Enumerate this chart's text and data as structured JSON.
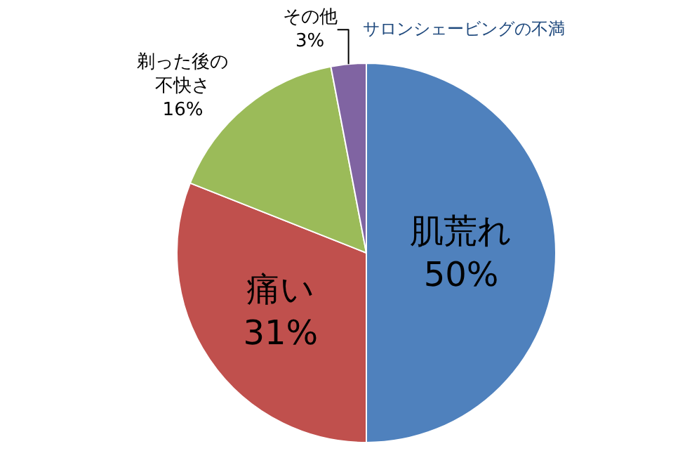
{
  "chart_data": {
    "type": "pie",
    "title": "サロンシェービングの不満",
    "categories": [
      "肌荒れ",
      "痛い",
      "剃った後の不快さ",
      "その他"
    ],
    "values": [
      50,
      31,
      16,
      3
    ],
    "value_labels": [
      "50%",
      "31%",
      "16%",
      "3%"
    ],
    "colors": [
      "#4f81bd",
      "#c0504d",
      "#9bbb59",
      "#8064a2"
    ],
    "legend": false
  }
}
